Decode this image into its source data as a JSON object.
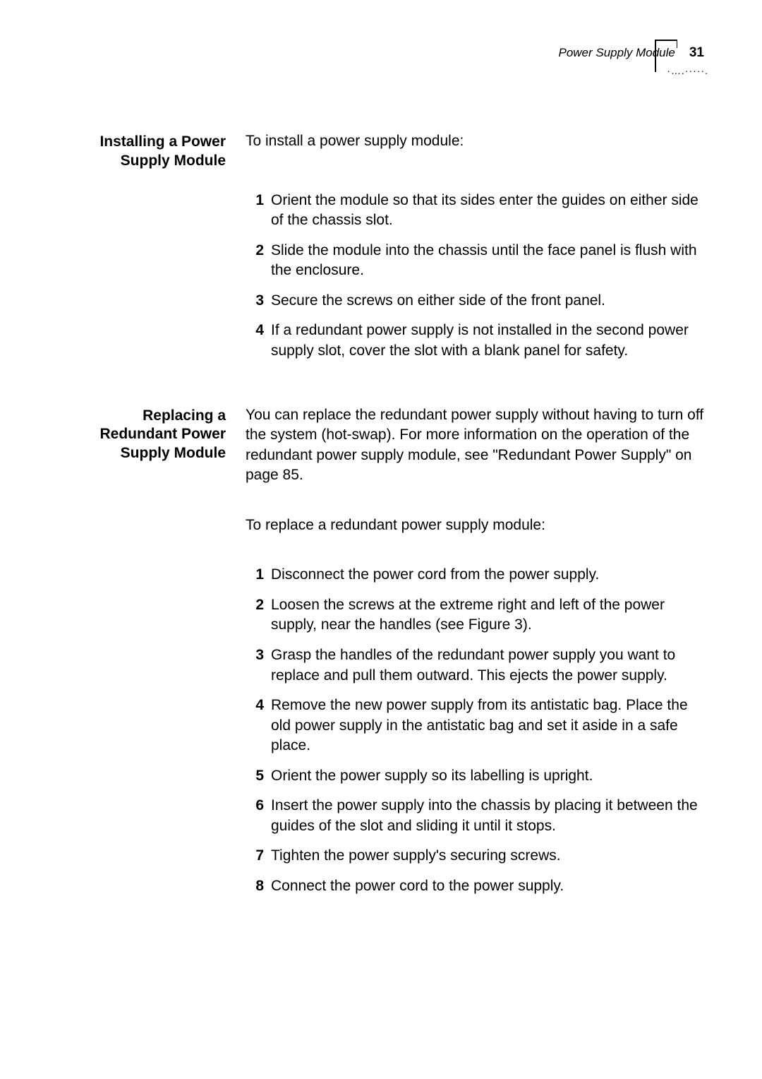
{
  "header": {
    "running_title": "Power Supply Module",
    "page_number": "31",
    "dot_pattern": "·….·····."
  },
  "section1": {
    "label": "Installing a Power Supply Module",
    "intro": "To install a power supply module:",
    "steps": [
      "Orient the module so that its sides enter the guides on either side of the chassis slot.",
      "Slide the module into the chassis until the face panel is flush with the enclosure.",
      "Secure the screws on either side of the front panel.",
      "If a redundant power supply is not installed in the second power supply slot, cover the slot with a blank panel for safety."
    ]
  },
  "section2": {
    "label": "Replacing a Redundant Power Supply Module",
    "intro1": "You can replace the redundant power supply without having to turn off the system (hot-swap). For more information on the operation of the redundant power supply module, see \"Redundant Power Supply\" on page 85.",
    "intro2": "To replace a redundant power supply module:",
    "steps": [
      "Disconnect the power cord from the power supply.",
      "Loosen the screws at the extreme right and left of the power supply, near the handles (see Figure 3).",
      "Grasp the handles of the redundant power supply you want to replace and pull them outward. This ejects the power supply.",
      "Remove the new power supply from its antistatic bag. Place the old power supply in the antistatic bag and set it aside in a safe place.",
      "Orient the power supply so its labelling is upright.",
      "Insert the power supply into the chassis by placing it between the guides of the slot and sliding it until it stops.",
      "Tighten the power supply's securing screws.",
      "Connect the power cord to the power supply."
    ]
  },
  "style": {
    "font_body_pt": 21,
    "font_label_weight": 700,
    "text_color": "#000000",
    "background_color": "#ffffff"
  }
}
